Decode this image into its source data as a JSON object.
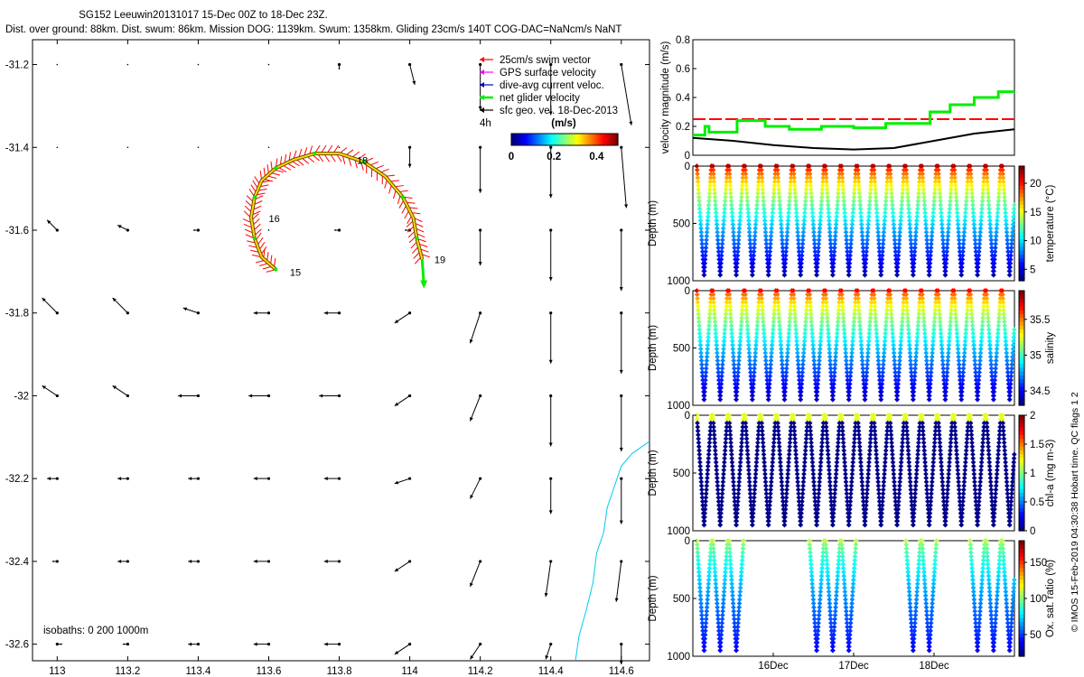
{
  "header": {
    "title": "SG152 Leeuwin20131017 15-Dec 00Z to 18-Dec 23Z.",
    "subtitle": "Dist. over ground: 88km. Dist. swum: 86km. Mission DOG: 1139km. Swum: 1358km. Gliding 23cm/s 140T COG-DAC=NaNcm/s NaNT"
  },
  "side_note": "© IMOS 15-Feb-2019 04:30:38 Hobart time. QC flags 1  2",
  "colors": {
    "swim": "#ff0000",
    "gps": "#ff00ff",
    "dac": "#0000cc",
    "net": "#00ee00",
    "sfc": "#000000",
    "coast": "#00ccee",
    "track": "#ffd700"
  },
  "chart_data": [
    {
      "type": "quiver-map",
      "xlim": [
        112.93,
        114.68
      ],
      "ylim": [
        -32.64,
        -31.14
      ],
      "xticks": [
        "113",
        "113.2",
        "113.4",
        "113.6",
        "113.8",
        "114",
        "114.2",
        "114.4",
        "114.6"
      ],
      "yticks": [
        "-31.2",
        "-31.4",
        "-31.6",
        "-31.8",
        "-32",
        "-32.2",
        "-32.4",
        "-32.6"
      ],
      "legend": {
        "items": [
          "25cm/s swim vector",
          "GPS surface velocity",
          "dive-avg current veloc.",
          "net glider velocity",
          "sfc geo. vel. 18-Dec-2013"
        ],
        "time_step": "4h",
        "colorbar_label": "(m/s)",
        "colorbar_ticks": [
          "0",
          "0.2",
          "0.4"
        ],
        "colorbar_range": [
          0,
          0.5
        ]
      },
      "isobaths_text": "isobaths: 0    200   1000m",
      "day_labels": [
        {
          "text": "15",
          "lon": 113.66,
          "lat": -31.71
        },
        {
          "text": "16",
          "lon": 113.6,
          "lat": -31.58
        },
        {
          "text": "18",
          "lon": 113.85,
          "lat": -31.44
        },
        {
          "text": "19",
          "lon": 114.07,
          "lat": -31.68
        }
      ],
      "track": [
        [
          113.62,
          -31.695
        ],
        [
          113.58,
          -31.665
        ],
        [
          113.56,
          -31.62
        ],
        [
          113.55,
          -31.57
        ],
        [
          113.56,
          -31.52
        ],
        [
          113.58,
          -31.48
        ],
        [
          113.62,
          -31.45
        ],
        [
          113.67,
          -31.43
        ],
        [
          113.73,
          -31.415
        ],
        [
          113.8,
          -31.415
        ],
        [
          113.87,
          -31.435
        ],
        [
          113.93,
          -31.47
        ],
        [
          113.98,
          -31.52
        ],
        [
          114.01,
          -31.57
        ],
        [
          114.02,
          -31.62
        ],
        [
          114.035,
          -31.67
        ]
      ],
      "net_velocity_arrow": {
        "from": [
          114.035,
          -31.67
        ],
        "to": [
          114.04,
          -31.73
        ]
      },
      "surface_velocity": {
        "lons": [
          113.0,
          113.2,
          113.4,
          113.6,
          113.8,
          114.0,
          114.2,
          114.4,
          114.6
        ],
        "lats": [
          -31.2,
          -31.4,
          -31.6,
          -31.8,
          -32.0,
          -32.2,
          -32.4,
          -32.6
        ],
        "units": "m/s",
        "u": [
          [
            0.0,
            0.0,
            0.0,
            0.0,
            0.0,
            0.01,
            0.0,
            0.0,
            0.02
          ],
          [
            0.0,
            0.0,
            0.0,
            0.0,
            0.0,
            0.0,
            0.0,
            0.0,
            0.01
          ],
          [
            -0.02,
            -0.02,
            -0.01,
            0.0,
            -0.01,
            -0.01,
            0.0,
            0.0,
            0.0
          ],
          [
            -0.03,
            -0.03,
            -0.03,
            -0.03,
            -0.03,
            -0.03,
            -0.02,
            0.0,
            0.0
          ],
          [
            -0.03,
            -0.03,
            -0.04,
            -0.04,
            -0.04,
            -0.03,
            -0.02,
            0.0,
            0.0
          ],
          [
            -0.02,
            -0.02,
            -0.02,
            -0.03,
            -0.03,
            -0.03,
            -0.02,
            0.0,
            0.0
          ],
          [
            -0.01,
            -0.02,
            -0.02,
            -0.03,
            -0.03,
            -0.03,
            -0.02,
            -0.01,
            -0.01
          ],
          [
            0.01,
            -0.01,
            -0.02,
            -0.03,
            -0.03,
            -0.03,
            -0.02,
            -0.01,
            0.0
          ]
        ],
        "v": [
          [
            0.0,
            0.0,
            0.0,
            0.0,
            -0.01,
            -0.04,
            -0.09,
            -0.1,
            -0.12
          ],
          [
            0.0,
            0.0,
            0.0,
            0.0,
            0.0,
            -0.04,
            -0.09,
            -0.1,
            -0.12
          ],
          [
            0.02,
            0.01,
            0.0,
            0.0,
            0.0,
            0.0,
            -0.07,
            -0.1,
            -0.12
          ],
          [
            0.03,
            0.03,
            0.01,
            0.0,
            0.0,
            -0.02,
            -0.06,
            -0.1,
            -0.12
          ],
          [
            0.02,
            0.02,
            0.0,
            0.0,
            0.0,
            -0.02,
            -0.05,
            -0.1,
            -0.11
          ],
          [
            0.0,
            0.0,
            0.0,
            0.0,
            0.0,
            -0.01,
            -0.04,
            -0.07,
            -0.09
          ],
          [
            0.0,
            0.0,
            0.0,
            0.0,
            0.0,
            -0.02,
            -0.05,
            -0.07,
            -0.08
          ],
          [
            0.0,
            0.0,
            0.0,
            0.0,
            0.0,
            -0.02,
            -0.03,
            -0.03,
            -0.04
          ]
        ]
      },
      "coastline": [
        [
          114.68,
          -32.11
        ],
        [
          114.63,
          -32.14
        ],
        [
          114.6,
          -32.17
        ],
        [
          114.58,
          -32.22
        ],
        [
          114.56,
          -32.27
        ],
        [
          114.55,
          -32.33
        ],
        [
          114.53,
          -32.38
        ],
        [
          114.52,
          -32.45
        ],
        [
          114.5,
          -32.52
        ],
        [
          114.48,
          -32.58
        ],
        [
          114.47,
          -32.64
        ]
      ]
    },
    {
      "type": "line",
      "ylabel": "velocity magnitude (m/s)",
      "ylim": [
        0,
        0.8
      ],
      "yticks": [
        "0",
        "0.2",
        "0.4",
        "0.6",
        "0.8"
      ],
      "x_range_days": [
        15.0,
        19.0
      ],
      "series": [
        {
          "color": "#ff0000",
          "style": "dashed",
          "points": [
            [
              15.0,
              0.25
            ],
            [
              19.0,
              0.25
            ]
          ]
        },
        {
          "color": "#00ee00",
          "style": "step",
          "points": [
            [
              15.0,
              0.14
            ],
            [
              15.15,
              0.2
            ],
            [
              15.2,
              0.16
            ],
            [
              15.55,
              0.24
            ],
            [
              15.9,
              0.2
            ],
            [
              16.2,
              0.18
            ],
            [
              16.6,
              0.2
            ],
            [
              17.0,
              0.19
            ],
            [
              17.4,
              0.22
            ],
            [
              17.7,
              0.22
            ],
            [
              17.95,
              0.3
            ],
            [
              18.2,
              0.35
            ],
            [
              18.5,
              0.4
            ],
            [
              18.8,
              0.44
            ],
            [
              19.0,
              0.44
            ]
          ]
        },
        {
          "color": "#000000",
          "style": "solid",
          "points": [
            [
              15.0,
              0.12
            ],
            [
              15.5,
              0.1
            ],
            [
              16.0,
              0.07
            ],
            [
              16.5,
              0.05
            ],
            [
              17.0,
              0.04
            ],
            [
              17.5,
              0.05
            ],
            [
              18.0,
              0.1
            ],
            [
              18.5,
              0.15
            ],
            [
              19.0,
              0.18
            ]
          ]
        }
      ]
    },
    {
      "type": "scatter",
      "ylabel": "Depth (m)",
      "ylim": [
        0,
        1000
      ],
      "yticks": [
        "0",
        "500",
        "1000"
      ],
      "cbar_label": "temperature (°C)",
      "cbar_ticks": [
        "5",
        "10",
        "15",
        "20"
      ],
      "cbar_range": [
        3,
        23
      ],
      "profile": {
        "first_day": 15.05,
        "period_days": 0.2,
        "count": 20,
        "max_depth": 950
      },
      "vertical_gradient": {
        "top_value": 22,
        "bottom_value": 4
      }
    },
    {
      "type": "scatter",
      "ylabel": "Depth (m)",
      "ylim": [
        0,
        1000
      ],
      "yticks": [
        "0",
        "500",
        "1000"
      ],
      "cbar_label": "salinity",
      "cbar_ticks": [
        "34.5",
        "35",
        "35.5"
      ],
      "cbar_range": [
        34.3,
        35.9
      ],
      "profile": {
        "first_day": 15.05,
        "period_days": 0.2,
        "count": 20,
        "max_depth": 950
      },
      "vertical_gradient": {
        "top_value": 35.7,
        "bottom_value": 34.4
      }
    },
    {
      "type": "scatter",
      "ylabel": "Depth (m)",
      "ylim": [
        0,
        1000
      ],
      "yticks": [
        "0",
        "500",
        "1000"
      ],
      "cbar_label": "chl-a (mg m-3)",
      "cbar_ticks": [
        "0",
        "0.5",
        "1",
        "1.5",
        "2"
      ],
      "cbar_range": [
        0,
        2
      ],
      "profile": {
        "first_day": 15.05,
        "period_days": 0.2,
        "count": 20,
        "max_depth": 950
      },
      "surface_value": 1.2,
      "deep_value": 0.02
    },
    {
      "type": "scatter",
      "ylabel": "Depth (m)",
      "ylim": [
        0,
        1000
      ],
      "yticks": [
        "0",
        "500",
        "1000"
      ],
      "cbar_label": "Ox. sat. ratio (%)",
      "cbar_ticks": [
        "50",
        "100",
        "150"
      ],
      "cbar_range": [
        20,
        180
      ],
      "xlabels": [
        "16Dec",
        "17Dec",
        "18Dec"
      ],
      "x_days": [
        16,
        17,
        18
      ],
      "profile_groups": [
        [
          15.05,
          15.25,
          15.45
        ],
        [
          16.45,
          16.65,
          16.85
        ],
        [
          17.65,
          17.85
        ],
        [
          18.45,
          18.65,
          18.85
        ]
      ],
      "profile": {
        "max_depth": 950
      },
      "vertical_gradient": {
        "top_value": 110,
        "bottom_value": 40
      }
    }
  ]
}
